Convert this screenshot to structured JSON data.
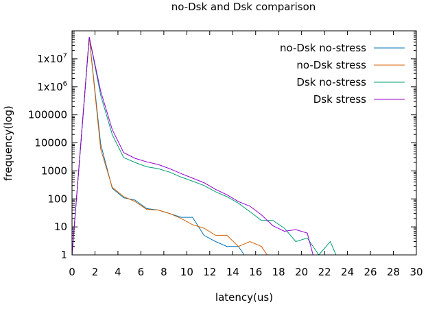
{
  "chart_data": {
    "type": "line",
    "title": "no-Dsk and Dsk comparison",
    "xlabel": "latency(us)",
    "ylabel": "frequency(log)",
    "xlim": [
      0,
      30
    ],
    "ylim": [
      1,
      100000000
    ],
    "yscale": "log",
    "x_ticks": [
      0,
      2,
      4,
      6,
      8,
      10,
      12,
      14,
      16,
      18,
      20,
      22,
      24,
      26,
      28,
      30
    ],
    "y_ticks": [
      {
        "value": 1,
        "label": "1"
      },
      {
        "value": 10,
        "label": "10"
      },
      {
        "value": 100,
        "label": "100"
      },
      {
        "value": 1000,
        "label": "1000"
      },
      {
        "value": 10000,
        "label": "10000"
      },
      {
        "value": 100000,
        "label": "100000"
      },
      {
        "value": 1000000,
        "label": "1x10^6"
      },
      {
        "value": 10000000,
        "label": "1x10^7"
      }
    ],
    "grid": false,
    "legend_position": "top-right",
    "series": [
      {
        "name": "no-Dsk no-stress",
        "color": "#0072b2",
        "x": [
          0,
          1.5,
          2.5,
          3.5,
          4.5,
          5.5,
          6.5,
          7.5,
          8.5,
          9.5,
          10.5,
          11.5,
          12.5,
          13.5,
          14.5,
          15.0
        ],
        "y": [
          1,
          60000000,
          9000,
          240,
          110,
          90,
          45,
          40,
          30,
          22,
          22,
          5,
          3,
          2,
          2,
          1
        ]
      },
      {
        "name": "no-Dsk stress",
        "color": "#d55e00",
        "x": [
          0,
          1.5,
          2.5,
          3.5,
          4.5,
          5.5,
          6.5,
          7.5,
          8.5,
          9.5,
          10.5,
          11.5,
          12.5,
          13.5,
          14.5,
          15.5,
          16.5,
          17.0
        ],
        "y": [
          1,
          60000000,
          6000,
          260,
          120,
          80,
          42,
          40,
          30,
          20,
          12,
          9,
          5,
          5,
          2,
          3,
          2,
          1
        ]
      },
      {
        "name": "Dsk no-stress",
        "color": "#009e73",
        "x": [
          0,
          1.5,
          2.5,
          3.5,
          4.5,
          5.5,
          6.5,
          7.5,
          8.5,
          9.5,
          10.5,
          11.5,
          12.5,
          13.5,
          14.5,
          15.5,
          16.5,
          17.5,
          18.5,
          19.5,
          20.5,
          21.5,
          22.5,
          23.0
        ],
        "y": [
          1,
          60000000,
          500000,
          20000,
          3000,
          2000,
          1400,
          1200,
          900,
          600,
          430,
          300,
          180,
          120,
          70,
          35,
          17,
          17,
          9,
          3,
          4,
          1,
          3,
          1
        ]
      },
      {
        "name": "Dsk stress",
        "color": "#9400d3",
        "x": [
          0,
          1.5,
          2.5,
          3.5,
          4.5,
          5.5,
          6.5,
          7.5,
          8.5,
          9.5,
          10.5,
          11.5,
          12.5,
          13.5,
          14.5,
          15.5,
          16.5,
          17.5,
          18.5,
          19.5,
          20.5,
          21.0
        ],
        "y": [
          1,
          60000000,
          700000,
          30000,
          4500,
          2800,
          2100,
          1700,
          1200,
          800,
          550,
          380,
          220,
          140,
          80,
          55,
          27,
          11,
          7,
          8,
          6,
          1
        ]
      }
    ]
  }
}
